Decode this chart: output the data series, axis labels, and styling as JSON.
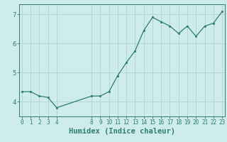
{
  "x": [
    0,
    1,
    2,
    3,
    4,
    8,
    9,
    10,
    11,
    12,
    13,
    14,
    15,
    16,
    17,
    18,
    19,
    20,
    21,
    22,
    23
  ],
  "y": [
    4.35,
    4.35,
    4.2,
    4.15,
    3.8,
    4.2,
    4.2,
    4.35,
    4.9,
    5.35,
    5.75,
    6.45,
    6.9,
    6.75,
    6.6,
    6.35,
    6.6,
    6.25,
    6.6,
    6.7,
    7.1
  ],
  "xlabel": "Humidex (Indice chaleur)",
  "xticks": [
    0,
    1,
    2,
    3,
    4,
    8,
    9,
    10,
    11,
    12,
    13,
    14,
    15,
    16,
    17,
    18,
    19,
    20,
    21,
    22,
    23
  ],
  "yticks": [
    4,
    5,
    6,
    7
  ],
  "ylim": [
    3.5,
    7.35
  ],
  "xlim": [
    -0.3,
    23.3
  ],
  "line_color": "#2e7d6e",
  "marker_color": "#2e7d6e",
  "bg_color": "#ceecea",
  "grid_color": "#b0d4d0",
  "axis_color": "#2e7d6e",
  "tick_color": "#2e7d6e",
  "label_color": "#2e7d6e",
  "tick_fontsize": 5.5,
  "xlabel_fontsize": 7.5
}
